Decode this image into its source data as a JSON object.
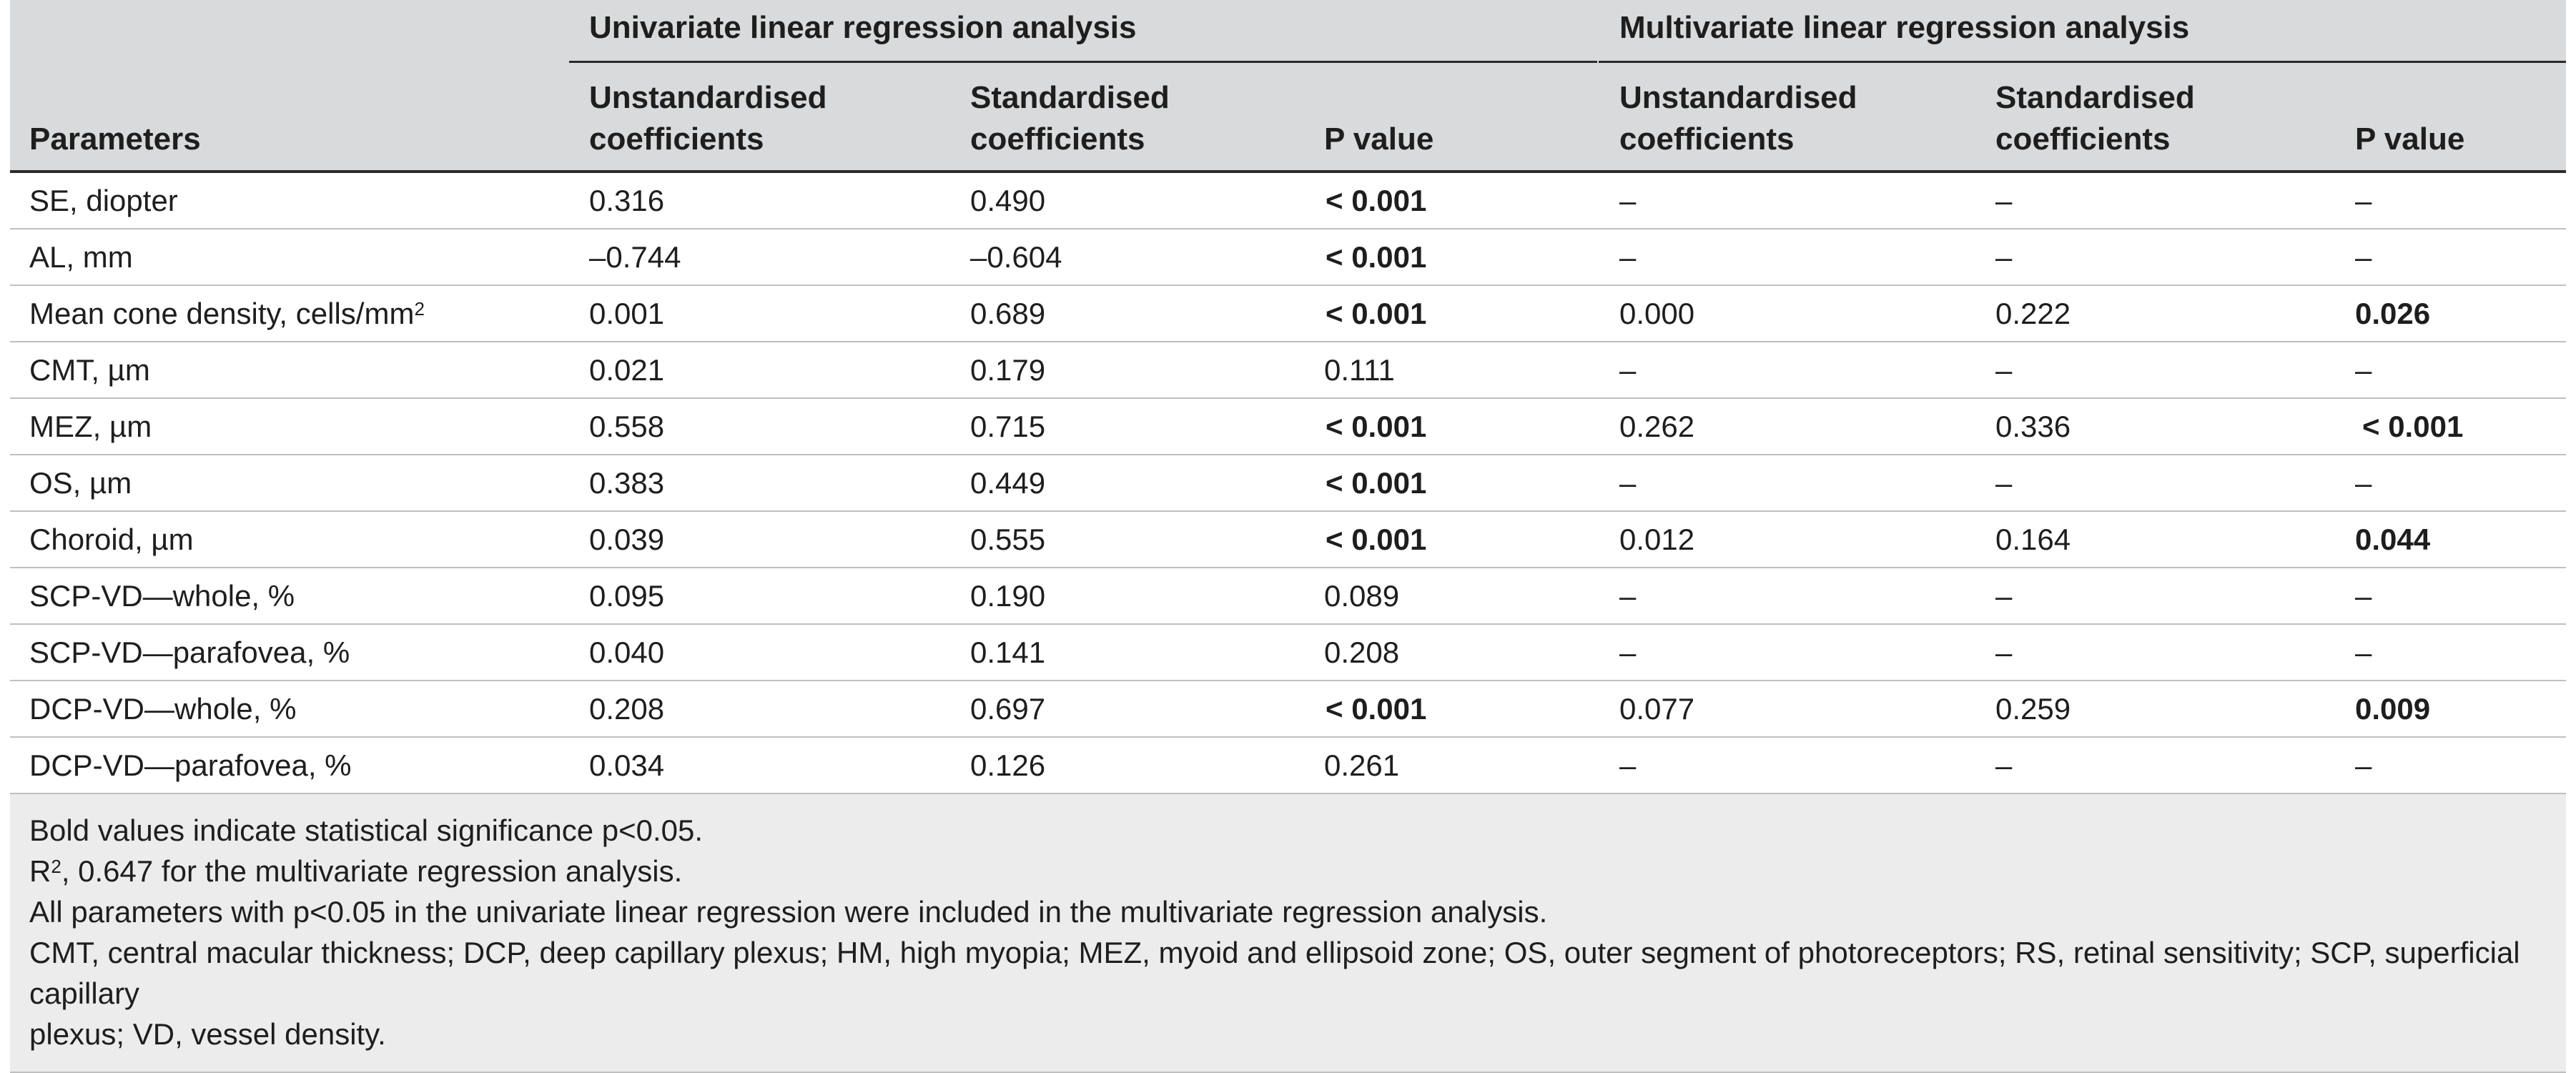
{
  "header": {
    "univariate_title": "Univariate linear regression analysis",
    "multivariate_title": "Multivariate linear regression analysis",
    "parameters": "Parameters",
    "uni_unstd_line1": "Unstandardised",
    "uni_unstd_line2": "coefficients",
    "uni_std_line1": "Standardised",
    "uni_std_line2": "coefficients",
    "uni_p": "P value",
    "multi_unstd_line1": "Unstandardised",
    "multi_unstd_line2": "coefficients",
    "multi_std_line1": "Standardised",
    "multi_std_line2": "coefficients",
    "multi_p": "P value"
  },
  "rows": [
    {
      "param": "SE, diopter",
      "u_unstd": "0.316",
      "u_std": "0.490",
      "u_p": "< 0.001",
      "m_unstd": "–",
      "m_std": "–",
      "m_p": "–"
    },
    {
      "param": "AL, mm",
      "u_unstd": "–0.744",
      "u_std": "–0.604",
      "u_p": "< 0.001",
      "m_unstd": "–",
      "m_std": "–",
      "m_p": "–"
    },
    {
      "param": "Mean cone density, cells/mm",
      "param_sup": "2",
      "u_unstd": "0.001",
      "u_std": "0.689",
      "u_p": "< 0.001",
      "m_unstd": "0.000",
      "m_std": "0.222",
      "m_p": "0.026"
    },
    {
      "param": "CMT, µm",
      "u_unstd": "0.021",
      "u_std": "0.179",
      "u_p": "0.111",
      "m_unstd": "–",
      "m_std": "–",
      "m_p": "–"
    },
    {
      "param": "MEZ, µm",
      "u_unstd": "0.558",
      "u_std": "0.715",
      "u_p": "< 0.001",
      "m_unstd": "0.262",
      "m_std": "0.336",
      "m_p": "< 0.001"
    },
    {
      "param": "OS, µm",
      "u_unstd": "0.383",
      "u_std": "0.449",
      "u_p": "< 0.001",
      "m_unstd": "–",
      "m_std": "–",
      "m_p": "–"
    },
    {
      "param": "Choroid, µm",
      "u_unstd": "0.039",
      "u_std": "0.555",
      "u_p": "< 0.001",
      "m_unstd": "0.012",
      "m_std": "0.164",
      "m_p": "0.044"
    },
    {
      "param": "SCP-VD—whole, %",
      "u_unstd": "0.095",
      "u_std": "0.190",
      "u_p": "0.089",
      "m_unstd": "–",
      "m_std": "–",
      "m_p": "–"
    },
    {
      "param": "SCP-VD—parafovea, %",
      "u_unstd": "0.040",
      "u_std": "0.141",
      "u_p": "0.208",
      "m_unstd": "–",
      "m_std": "–",
      "m_p": "–"
    },
    {
      "param": "DCP-VD—whole, %",
      "u_unstd": "0.208",
      "u_std": "0.697",
      "u_p": "< 0.001",
      "m_unstd": "0.077",
      "m_std": "0.259",
      "m_p": "0.009"
    },
    {
      "param": "DCP-VD—parafovea, %",
      "u_unstd": "0.034",
      "u_std": "0.126",
      "u_p": "0.261",
      "m_unstd": "–",
      "m_std": "–",
      "m_p": "–"
    }
  ],
  "footer": {
    "line1": "Bold values indicate statistical significance p<0.05.",
    "line2_prefix": "R",
    "line2_sup": "2",
    "line2_rest": ", 0.647 for the multivariate regression analysis.",
    "line3": "All parameters with p<0.05 in the univariate linear regression were included in the multivariate regression analysis.",
    "line4": "CMT, central macular thickness; DCP, deep capillary plexus; HM, high myopia; MEZ, myoid and ellipsoid zone; OS, outer segment of photoreceptors; RS, retinal sensitivity; SCP, superficial capillary",
    "line5": "plexus; VD, vessel density."
  }
}
